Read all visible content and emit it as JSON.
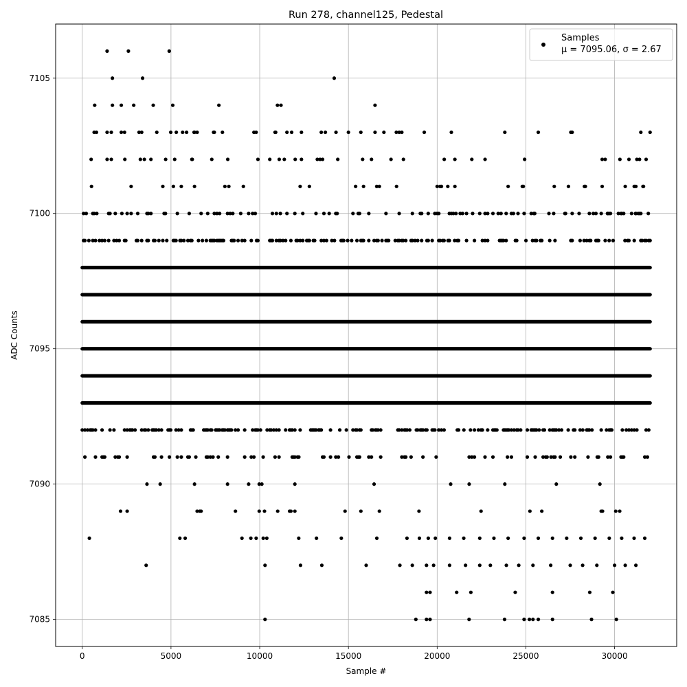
{
  "chart_data": {
    "type": "scatter",
    "title": "Run 278, channel125, Pedestal",
    "xlabel": "Sample #",
    "ylabel": "ADC Counts",
    "xlim": [
      -1500,
      33500
    ],
    "ylim": [
      7084,
      7107
    ],
    "xticks": [
      0,
      5000,
      10000,
      15000,
      20000,
      25000,
      30000
    ],
    "xtick_labels": [
      "0",
      "5000",
      "10000",
      "15000",
      "20000",
      "25000",
      "30000"
    ],
    "yticks": [
      7085,
      7090,
      7095,
      7100,
      7105
    ],
    "ytick_labels": [
      "7085",
      "7090",
      "7095",
      "7100",
      "7105"
    ],
    "grid": true,
    "legend_position": "top-right",
    "marker_color": "#000000",
    "series": [
      {
        "name": "Samples",
        "legend_stats": "μ = 7095.06, σ = 2.67",
        "dense_bands": [
          {
            "y": 7093,
            "x_range": [
              0,
              32000
            ]
          },
          {
            "y": 7094,
            "x_range": [
              0,
              32000
            ]
          },
          {
            "y": 7095,
            "x_range": [
              0,
              32000
            ]
          },
          {
            "y": 7096,
            "x_range": [
              0,
              32000
            ]
          },
          {
            "y": 7097,
            "x_range": [
              0,
              32000
            ]
          },
          {
            "y": 7098,
            "x_range": [
              0,
              32000
            ]
          }
        ],
        "sparse_bands": [
          {
            "y": 7089,
            "x_range": [
              0,
              32000
            ]
          },
          {
            "y": 7090,
            "x_range": [
              0,
              32000
            ]
          },
          {
            "y": 7091,
            "x_range": [
              0,
              32000
            ]
          },
          {
            "y": 7092,
            "x_range": [
              0,
              32000
            ]
          },
          {
            "y": 7099,
            "x_range": [
              0,
              32000
            ]
          },
          {
            "y": 7100,
            "x_range": [
              0,
              32000
            ]
          },
          {
            "y": 7101,
            "x_range": [
              0,
              32000
            ]
          },
          {
            "y": 7102,
            "x_range": [
              0,
              32000
            ]
          },
          {
            "y": 7103,
            "x_range": [
              0,
              32000
            ]
          }
        ],
        "outliers": [
          [
            1400,
            7106
          ],
          [
            2600,
            7106
          ],
          [
            4900,
            7106
          ],
          [
            1700,
            7105
          ],
          [
            3400,
            7105
          ],
          [
            14200,
            7105
          ],
          [
            700,
            7104
          ],
          [
            1700,
            7104
          ],
          [
            2200,
            7104
          ],
          [
            2900,
            7104
          ],
          [
            4000,
            7104
          ],
          [
            5100,
            7104
          ],
          [
            7700,
            7104
          ],
          [
            11000,
            7104
          ],
          [
            11200,
            7104
          ],
          [
            16500,
            7104
          ],
          [
            800,
            7103
          ],
          [
            1400,
            7103
          ],
          [
            2200,
            7103
          ],
          [
            3200,
            7103
          ],
          [
            4200,
            7103
          ],
          [
            5300,
            7103
          ],
          [
            6300,
            7103
          ],
          [
            7400,
            7103
          ],
          [
            7900,
            7103
          ],
          [
            9800,
            7103
          ],
          [
            10900,
            7103
          ],
          [
            11800,
            7103
          ],
          [
            13700,
            7103
          ],
          [
            14300,
            7103
          ],
          [
            15000,
            7103
          ],
          [
            15700,
            7103
          ],
          [
            16500,
            7103
          ],
          [
            17000,
            7103
          ],
          [
            17700,
            7103
          ],
          [
            20800,
            7103
          ],
          [
            25700,
            7103
          ],
          [
            500,
            7102
          ],
          [
            1400,
            7102
          ],
          [
            2400,
            7102
          ],
          [
            3500,
            7102
          ],
          [
            4700,
            7102
          ],
          [
            6200,
            7102
          ],
          [
            7300,
            7102
          ],
          [
            8200,
            7102
          ],
          [
            9900,
            7102
          ],
          [
            11100,
            7102
          ],
          [
            12000,
            7102
          ],
          [
            13400,
            7102
          ],
          [
            14400,
            7102
          ],
          [
            15800,
            7102
          ],
          [
            16300,
            7102
          ],
          [
            17400,
            7102
          ],
          [
            18100,
            7102
          ],
          [
            20400,
            7102
          ],
          [
            21000,
            7102
          ],
          [
            22700,
            7102
          ],
          [
            29300,
            7102
          ],
          [
            30300,
            7102
          ],
          [
            20000,
            7101
          ],
          [
            20600,
            7101
          ],
          [
            21000,
            7101
          ],
          [
            24000,
            7101
          ],
          [
            24800,
            7101
          ],
          [
            26600,
            7101
          ],
          [
            27400,
            7101
          ],
          [
            28300,
            7101
          ],
          [
            29300,
            7101
          ],
          [
            30600,
            7101
          ],
          [
            31200,
            7101
          ],
          [
            31600,
            7101
          ],
          [
            20000,
            7100
          ],
          [
            20800,
            7100
          ],
          [
            21300,
            7100
          ],
          [
            22000,
            7100
          ],
          [
            22700,
            7100
          ],
          [
            23600,
            7100
          ],
          [
            24300,
            7100
          ],
          [
            24900,
            7100
          ],
          [
            25500,
            7100
          ],
          [
            26300,
            7100
          ],
          [
            27200,
            7100
          ],
          [
            28000,
            7100
          ],
          [
            28800,
            7100
          ],
          [
            29600,
            7100
          ],
          [
            30400,
            7100
          ],
          [
            31200,
            7100
          ],
          [
            31900,
            7100
          ],
          [
            400,
            7088
          ],
          [
            5500,
            7088
          ],
          [
            5800,
            7088
          ],
          [
            9000,
            7088
          ],
          [
            9500,
            7088
          ],
          [
            9800,
            7088
          ],
          [
            10200,
            7088
          ],
          [
            10400,
            7088
          ],
          [
            12200,
            7088
          ],
          [
            13200,
            7088
          ],
          [
            14600,
            7088
          ],
          [
            16600,
            7088
          ],
          [
            18300,
            7088
          ],
          [
            19000,
            7088
          ],
          [
            19500,
            7088
          ],
          [
            19900,
            7088
          ],
          [
            20700,
            7088
          ],
          [
            21500,
            7088
          ],
          [
            22400,
            7088
          ],
          [
            23200,
            7088
          ],
          [
            24000,
            7088
          ],
          [
            24900,
            7088
          ],
          [
            25700,
            7088
          ],
          [
            26500,
            7088
          ],
          [
            27300,
            7088
          ],
          [
            28100,
            7088
          ],
          [
            28900,
            7088
          ],
          [
            29700,
            7088
          ],
          [
            30400,
            7088
          ],
          [
            31100,
            7088
          ],
          [
            31700,
            7088
          ],
          [
            3600,
            7087
          ],
          [
            10300,
            7087
          ],
          [
            12300,
            7087
          ],
          [
            13500,
            7087
          ],
          [
            16000,
            7087
          ],
          [
            17900,
            7087
          ],
          [
            18600,
            7087
          ],
          [
            19400,
            7087
          ],
          [
            19800,
            7087
          ],
          [
            20700,
            7087
          ],
          [
            21600,
            7087
          ],
          [
            22400,
            7087
          ],
          [
            23000,
            7087
          ],
          [
            23900,
            7087
          ],
          [
            24600,
            7087
          ],
          [
            25400,
            7087
          ],
          [
            26400,
            7087
          ],
          [
            27500,
            7087
          ],
          [
            28200,
            7087
          ],
          [
            29000,
            7087
          ],
          [
            30000,
            7087
          ],
          [
            30600,
            7087
          ],
          [
            31200,
            7087
          ],
          [
            19400,
            7086
          ],
          [
            19600,
            7086
          ],
          [
            21100,
            7086
          ],
          [
            21900,
            7086
          ],
          [
            24400,
            7086
          ],
          [
            26500,
            7086
          ],
          [
            28600,
            7086
          ],
          [
            29900,
            7086
          ],
          [
            10300,
            7085
          ],
          [
            18800,
            7085
          ],
          [
            19400,
            7085
          ],
          [
            19600,
            7085
          ],
          [
            21800,
            7085
          ],
          [
            23800,
            7085
          ],
          [
            24900,
            7085
          ],
          [
            25200,
            7085
          ],
          [
            25400,
            7085
          ],
          [
            25700,
            7085
          ],
          [
            26500,
            7085
          ],
          [
            28700,
            7085
          ],
          [
            30100,
            7085
          ]
        ]
      }
    ]
  }
}
